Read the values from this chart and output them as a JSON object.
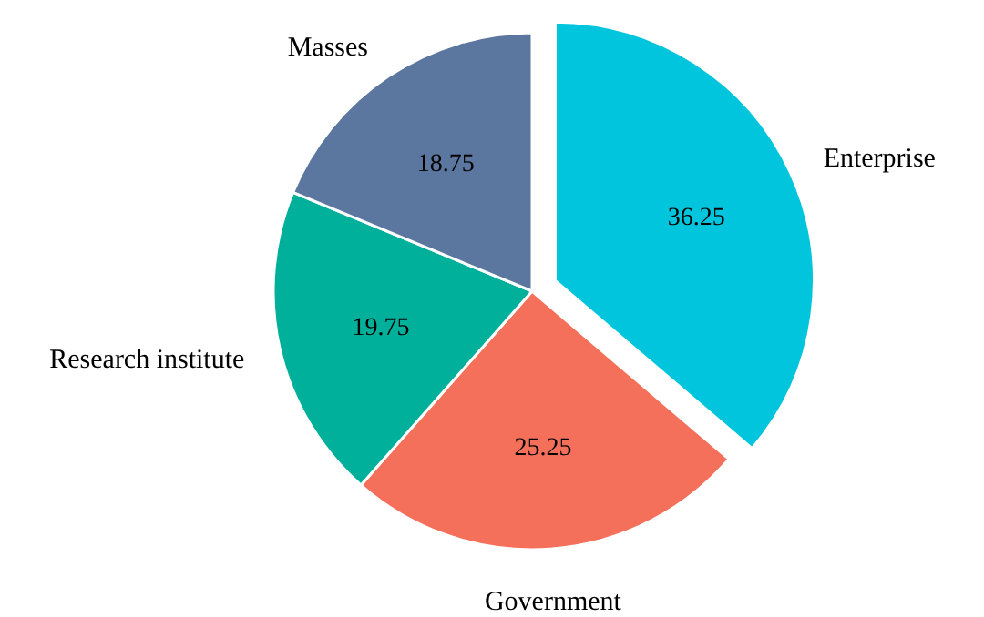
{
  "chart_data": {
    "type": "pie",
    "categories": [
      "Enterprise",
      "Government",
      "Research institute",
      "Masses"
    ],
    "values": [
      36.25,
      25.25,
      19.75,
      18.75
    ],
    "colors": [
      "#00c5dc",
      "#f4705a",
      "#00b09b",
      "#5b77a0"
    ],
    "data_labels": true
  }
}
